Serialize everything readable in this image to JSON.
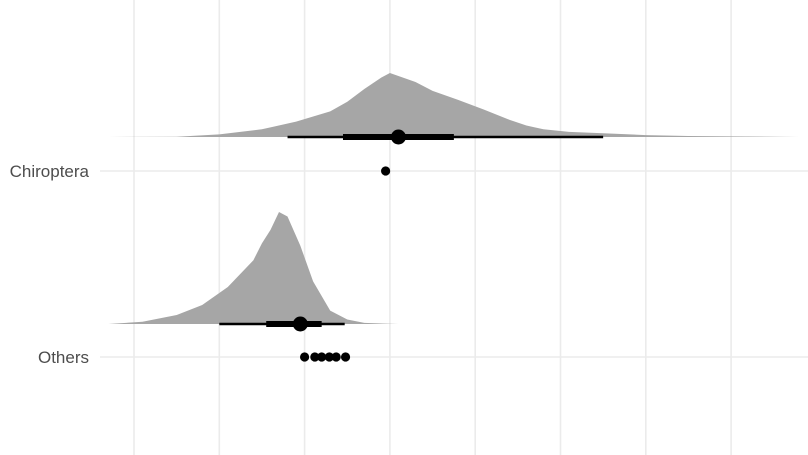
{
  "chart_data": {
    "type": "halfeye",
    "title": "",
    "xlabel": "",
    "ylabel": "",
    "xlim": [
      -0.8,
      7.3
    ],
    "x_major_ticks": [
      -0.5,
      0.5,
      1.5,
      2.5,
      3.5,
      4.5,
      5.5,
      6.5
    ],
    "x_tick_labels_shown": false,
    "grid": true,
    "colors": {
      "density": "#a6a6a6",
      "interval": "#000000",
      "points": "#000000",
      "grid": "#ebebeb",
      "label": "#4d4d4d"
    },
    "categories": [
      "Chiroptera",
      "Others"
    ],
    "series": [
      {
        "category": "Chiroptera",
        "density": {
          "x": [
            -0.8,
            0.0,
            0.5,
            1.0,
            1.4,
            1.8,
            2.0,
            2.2,
            2.4,
            2.5,
            2.8,
            3.0,
            3.3,
            3.6,
            3.9,
            4.1,
            4.3,
            4.6,
            5.0,
            5.5,
            6.0,
            6.5,
            7.0,
            7.3
          ],
          "density": [
            0.0,
            0.005,
            0.04,
            0.12,
            0.24,
            0.4,
            0.55,
            0.75,
            0.93,
            1.0,
            0.86,
            0.72,
            0.58,
            0.43,
            0.27,
            0.18,
            0.12,
            0.08,
            0.06,
            0.03,
            0.015,
            0.01,
            0.005,
            0.0
          ]
        },
        "point_estimate": 2.6,
        "interval_66": [
          1.95,
          3.25
        ],
        "interval_95": [
          1.3,
          5.0
        ],
        "observations": [
          2.45
        ]
      },
      {
        "category": "Others",
        "density": {
          "x": [
            -0.8,
            -0.4,
            0.0,
            0.3,
            0.6,
            0.9,
            1.0,
            1.1,
            1.2,
            1.3,
            1.45,
            1.6,
            1.8,
            2.0,
            2.2,
            2.6
          ],
          "density": [
            0.0,
            0.02,
            0.08,
            0.17,
            0.33,
            0.57,
            0.72,
            0.84,
            1.0,
            0.96,
            0.7,
            0.38,
            0.12,
            0.04,
            0.01,
            0.0
          ]
        },
        "point_estimate": 1.45,
        "interval_66": [
          1.05,
          1.7
        ],
        "interval_95": [
          0.5,
          1.97
        ],
        "observations": [
          1.5,
          1.62,
          1.7,
          1.79,
          1.87,
          1.98
        ]
      }
    ]
  }
}
